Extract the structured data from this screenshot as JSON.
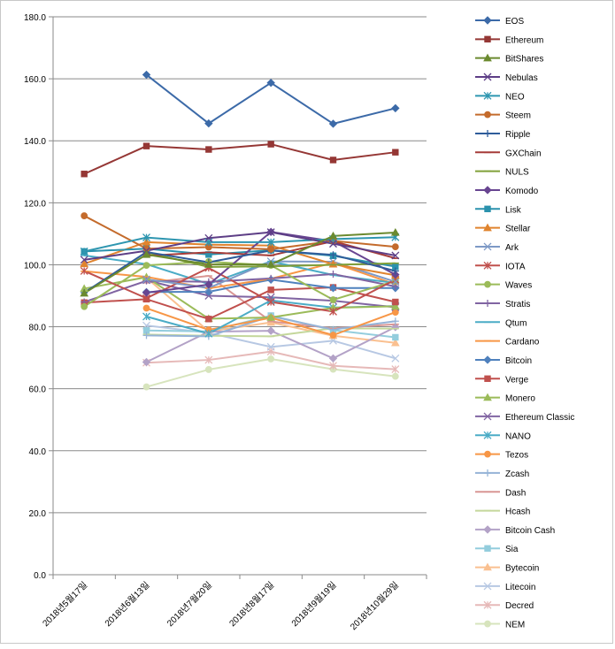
{
  "chart_data": {
    "type": "line",
    "title": "",
    "xlabel": "",
    "ylabel": "",
    "ylim": [
      0,
      180
    ],
    "y_ticks": [
      "0.0",
      "20.0",
      "40.0",
      "60.0",
      "80.0",
      "100.0",
      "120.0",
      "140.0",
      "160.0",
      "180.0"
    ],
    "categories": [
      "2018년5월17일",
      "2018년6월13일",
      "2018년7월20일",
      "2018년8월17일",
      "2018년9월19일",
      "2018년10월29일"
    ],
    "grid": "horizontal",
    "legend_position": "right",
    "series": [
      {
        "name": "EOS",
        "color": "#3c6aa8",
        "marker": "diamond",
        "values": [
          null,
          161.3,
          145.6,
          158.7,
          145.5,
          150.5
        ]
      },
      {
        "name": "Ethereum",
        "color": "#953735",
        "marker": "square",
        "values": [
          129.3,
          138.3,
          137.2,
          138.9,
          133.8,
          136.3
        ]
      },
      {
        "name": "BitShares",
        "color": "#6b8a2f",
        "marker": "triangle",
        "values": [
          90.8,
          103.3,
          100.1,
          100.1,
          109.3,
          110.4
        ]
      },
      {
        "name": "Nebulas",
        "color": "#5d3e86",
        "marker": "x",
        "values": [
          101.6,
          104.5,
          108.6,
          110.5,
          106.8,
          103.0
        ]
      },
      {
        "name": "NEO",
        "color": "#2e96b0",
        "marker": "asterisk",
        "values": [
          104.3,
          108.8,
          107.3,
          107.3,
          108.3,
          108.9
        ]
      },
      {
        "name": "Steem",
        "color": "#c46b2c",
        "marker": "circle",
        "values": [
          115.8,
          105.2,
          105.7,
          105.0,
          107.7,
          105.8
        ]
      },
      {
        "name": "Ripple",
        "color": "#2e5c9a",
        "marker": "plus",
        "values": [
          91.0,
          104.1,
          100.8,
          104.6,
          103.2,
          98.0
        ]
      },
      {
        "name": "GXChain",
        "color": "#a63b38",
        "marker": "dash",
        "values": [
          null,
          102.9,
          104.0,
          103.0,
          107.6,
          102.1
        ]
      },
      {
        "name": "NULS",
        "color": "#80a039",
        "marker": "dash",
        "values": [
          null,
          104.0,
          99.3,
          99.5,
          100.0,
          100.5
        ]
      },
      {
        "name": "Komodo",
        "color": "#684591",
        "marker": "diamond",
        "values": [
          null,
          91.0,
          93.6,
          110.6,
          107.6,
          96.8
        ]
      },
      {
        "name": "Lisk",
        "color": "#2b92ad",
        "marker": "square",
        "values": [
          104.3,
          105.2,
          103.3,
          104.7,
          102.9,
          99.4
        ]
      },
      {
        "name": "Stellar",
        "color": "#e0842f",
        "marker": "triangle",
        "values": [
          100.3,
          107.3,
          106.5,
          106.2,
          100.2,
          96.6
        ]
      },
      {
        "name": "Ark",
        "color": "#7d99c6",
        "marker": "x",
        "values": [
          null,
          95.3,
          92.5,
          101.1,
          101.0,
          94.5
        ]
      },
      {
        "name": "IOTA",
        "color": "#c0504d",
        "marker": "asterisk",
        "values": [
          98.0,
          89.2,
          99.0,
          88.0,
          84.9,
          95.2
        ]
      },
      {
        "name": "Waves",
        "color": "#9bbb59",
        "marker": "circle",
        "values": [
          86.5,
          99.8,
          101.0,
          99.8,
          88.7,
          94.8
        ]
      },
      {
        "name": "Stratis",
        "color": "#8064a2",
        "marker": "plus",
        "values": [
          88.0,
          94.8,
          94.5,
          95.6,
          97.0,
          93.0
        ]
      },
      {
        "name": "Qtum",
        "color": "#4bacc6",
        "marker": "dash",
        "values": [
          103.0,
          100.2,
          93.8,
          101.1,
          96.7,
          94.1
        ]
      },
      {
        "name": "Cardano",
        "color": "#f79646",
        "marker": "dash",
        "values": [
          97.9,
          96.1,
          92.4,
          95.5,
          100.6,
          93.7
        ]
      },
      {
        "name": "Bitcoin",
        "color": "#4f81bd",
        "marker": "diamond",
        "values": [
          null,
          91.2,
          91.3,
          95.2,
          92.5,
          92.5
        ]
      },
      {
        "name": "Verge",
        "color": "#c0504d",
        "marker": "square",
        "values": [
          87.8,
          88.9,
          82.5,
          91.9,
          92.7,
          88.0
        ]
      },
      {
        "name": "Monero",
        "color": "#9bbb59",
        "marker": "triangle",
        "values": [
          92.3,
          96.0,
          82.6,
          83.0,
          86.1,
          86.6
        ]
      },
      {
        "name": "Ethereum Classic",
        "color": "#8064a2",
        "marker": "x",
        "values": [
          null,
          95.0,
          90.0,
          89.5,
          88.4,
          86.3
        ]
      },
      {
        "name": "NANO",
        "color": "#4bacc6",
        "marker": "asterisk",
        "values": [
          null,
          83.3,
          77.8,
          88.5,
          86.2,
          86.7
        ]
      },
      {
        "name": "Tezos",
        "color": "#f79646",
        "marker": "circle",
        "values": [
          null,
          86.0,
          79.0,
          82.9,
          77.3,
          84.7
        ]
      },
      {
        "name": "Zcash",
        "color": "#95b3d7",
        "marker": "plus",
        "values": [
          null,
          77.2,
          76.9,
          83.4,
          79.1,
          81.8
        ]
      },
      {
        "name": "Dash",
        "color": "#d99694",
        "marker": "dash",
        "values": [
          null,
          94.2,
          96.4,
          81.7,
          79.5,
          80.8
        ]
      },
      {
        "name": "Hcash",
        "color": "#c4d79b",
        "marker": "dash",
        "values": [
          null,
          77.5,
          77.1,
          76.9,
          79.5,
          79.4
        ]
      },
      {
        "name": "Bitcoin Cash",
        "color": "#b3a2c7",
        "marker": "diamond",
        "values": [
          null,
          68.6,
          78.4,
          78.7,
          69.8,
          79.9
        ]
      },
      {
        "name": "Sia",
        "color": "#93cddd",
        "marker": "square",
        "values": [
          null,
          78.8,
          78.5,
          83.6,
          78.9,
          76.6
        ]
      },
      {
        "name": "Bytecoin",
        "color": "#fac090",
        "marker": "triangle",
        "values": [
          null,
          95.8,
          78.5,
          81.4,
          77.1,
          74.8
        ]
      },
      {
        "name": "Litecoin",
        "color": "#b7c8e3",
        "marker": "x",
        "values": [
          null,
          80.4,
          78.0,
          73.5,
          75.5,
          69.8
        ]
      },
      {
        "name": "Decred",
        "color": "#e6b9b8",
        "marker": "asterisk",
        "values": [
          null,
          68.4,
          69.3,
          72.0,
          67.4,
          66.3
        ]
      },
      {
        "name": "NEM",
        "color": "#d7e4bd",
        "marker": "circle",
        "values": [
          null,
          60.6,
          66.2,
          69.6,
          66.3,
          64.0
        ]
      }
    ]
  }
}
